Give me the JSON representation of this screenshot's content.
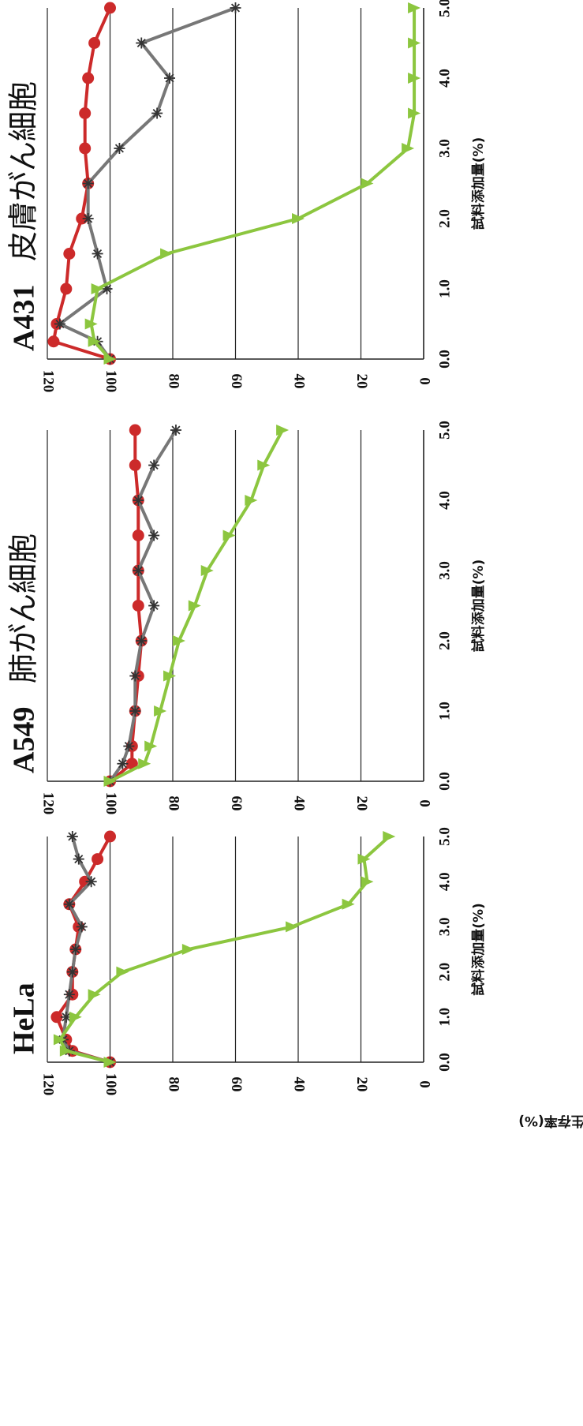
{
  "y_axis_label": "細胞生存率(%)",
  "chart_data": [
    {
      "type": "line",
      "title": "HeLa",
      "xlabel": "試料添加量(%)",
      "ylabel": "細胞生存率(%)",
      "xlim": [
        0,
        5
      ],
      "ylim": [
        0,
        120
      ],
      "x_ticks": [
        "0.0",
        "1.0",
        "2.0",
        "3.0",
        "4.0",
        "5.0"
      ],
      "y_ticks": [
        "0",
        "20",
        "40",
        "60",
        "80",
        "100",
        "120"
      ],
      "grid": true,
      "series": [
        {
          "color": "#cc2a2a",
          "marker": "circle",
          "x": [
            0,
            0.25,
            0.5,
            1.0,
            1.5,
            2.0,
            2.5,
            3.0,
            3.5,
            4.0,
            4.5,
            5.0
          ],
          "y": [
            100,
            112,
            114,
            117,
            112,
            112,
            111,
            110,
            113,
            108,
            104,
            100
          ]
        },
        {
          "color": "#777777",
          "marker": "star",
          "x": [
            0,
            0.25,
            0.5,
            1.0,
            1.5,
            2.0,
            2.5,
            3.0,
            3.5,
            4.0,
            4.5,
            5.0
          ],
          "y": [
            100,
            113,
            115,
            114,
            113,
            112,
            111,
            109,
            113,
            106,
            110,
            112
          ]
        },
        {
          "color": "#8cc63f",
          "marker": "triangle",
          "x": [
            0,
            0.25,
            0.5,
            1.0,
            1.5,
            2.0,
            2.5,
            3.0,
            3.5,
            4.0,
            4.5,
            5.0
          ],
          "y": [
            100,
            114,
            116,
            111,
            105,
            96,
            75,
            42,
            24,
            18,
            19,
            11
          ]
        }
      ]
    },
    {
      "type": "line",
      "title": "A549",
      "subtitle": "肺がん細胞",
      "xlabel": "試料添加量(%)",
      "xlim": [
        0,
        5
      ],
      "ylim": [
        0,
        120
      ],
      "x_ticks": [
        "0.0",
        "1.0",
        "2.0",
        "3.0",
        "4.0",
        "5.0"
      ],
      "y_ticks": [
        "0",
        "20",
        "40",
        "60",
        "80",
        "100",
        "120"
      ],
      "grid": true,
      "series": [
        {
          "color": "#cc2a2a",
          "marker": "circle",
          "x": [
            0,
            0.25,
            0.5,
            1.0,
            1.5,
            2.0,
            2.5,
            3.0,
            3.5,
            4.0,
            4.5,
            5.0
          ],
          "y": [
            100,
            93,
            93,
            92,
            91,
            90,
            91,
            91,
            91,
            91,
            92,
            92
          ]
        },
        {
          "color": "#777777",
          "marker": "star",
          "x": [
            0,
            0.25,
            0.5,
            1.0,
            1.5,
            2.0,
            2.5,
            3.0,
            3.5,
            4.0,
            4.5,
            5.0
          ],
          "y": [
            100,
            96,
            94,
            92,
            92,
            90,
            86,
            91,
            86,
            91,
            86,
            79
          ]
        },
        {
          "color": "#8cc63f",
          "marker": "triangle",
          "x": [
            0,
            0.25,
            0.5,
            1.0,
            1.5,
            2.0,
            2.5,
            3.0,
            3.5,
            4.0,
            4.5,
            5.0
          ],
          "y": [
            100,
            89,
            87,
            84,
            81,
            78,
            73,
            69,
            62,
            55,
            51,
            45
          ]
        }
      ]
    },
    {
      "type": "line",
      "title": "A431",
      "subtitle": "皮膚がん細胞",
      "xlabel": "試料添加量(%)",
      "xlim": [
        0,
        5
      ],
      "ylim": [
        0,
        120
      ],
      "x_ticks": [
        "0.0",
        "1.0",
        "2.0",
        "3.0",
        "4.0",
        "5.0"
      ],
      "y_ticks": [
        "0",
        "20",
        "40",
        "60",
        "80",
        "100",
        "120"
      ],
      "grid": true,
      "series": [
        {
          "color": "#cc2a2a",
          "marker": "circle",
          "x": [
            0,
            0.25,
            0.5,
            1.0,
            1.5,
            2.0,
            2.5,
            3.0,
            3.5,
            4.0,
            4.5,
            5.0
          ],
          "y": [
            100,
            118,
            117,
            114,
            113,
            109,
            107,
            108,
            108,
            107,
            105,
            100
          ]
        },
        {
          "color": "#777777",
          "marker": "star",
          "x": [
            0,
            0.25,
            0.5,
            1.0,
            1.5,
            2.0,
            2.5,
            3.0,
            3.5,
            4.0,
            4.5,
            5.0
          ],
          "y": [
            100,
            104,
            116,
            101,
            104,
            107,
            107,
            97,
            85,
            81,
            90,
            60
          ]
        },
        {
          "color": "#8cc63f",
          "marker": "triangle",
          "x": [
            0,
            0.25,
            0.5,
            1.0,
            1.5,
            2.0,
            2.5,
            3.0,
            3.5,
            4.0,
            4.5,
            5.0
          ],
          "y": [
            100,
            105,
            106,
            104,
            82,
            40,
            18,
            5,
            3,
            3,
            3,
            3
          ]
        }
      ]
    }
  ]
}
